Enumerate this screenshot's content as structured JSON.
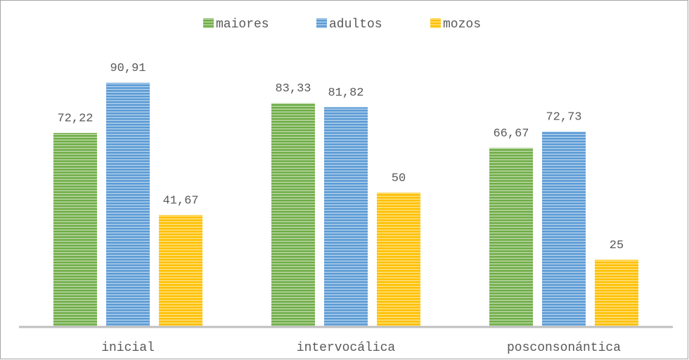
{
  "chart_data": {
    "type": "bar",
    "categories": [
      "inicial",
      "intervocálica",
      "posconsonántica"
    ],
    "series": [
      {
        "name": "maiores",
        "color": "#70ad47",
        "values": [
          72.22,
          83.33,
          66.67
        ],
        "value_labels": [
          "72,22",
          "83,33",
          "66,67"
        ]
      },
      {
        "name": "adultos",
        "color": "#5b9bd5",
        "values": [
          90.91,
          81.82,
          72.73
        ],
        "value_labels": [
          "90,91",
          "81,82",
          "72,73"
        ]
      },
      {
        "name": "mozos",
        "color": "#ffc000",
        "values": [
          41.67,
          50,
          25
        ],
        "value_labels": [
          "41,67",
          "50",
          "25"
        ]
      }
    ],
    "ylim": [
      0,
      100
    ],
    "legend": "top"
  }
}
